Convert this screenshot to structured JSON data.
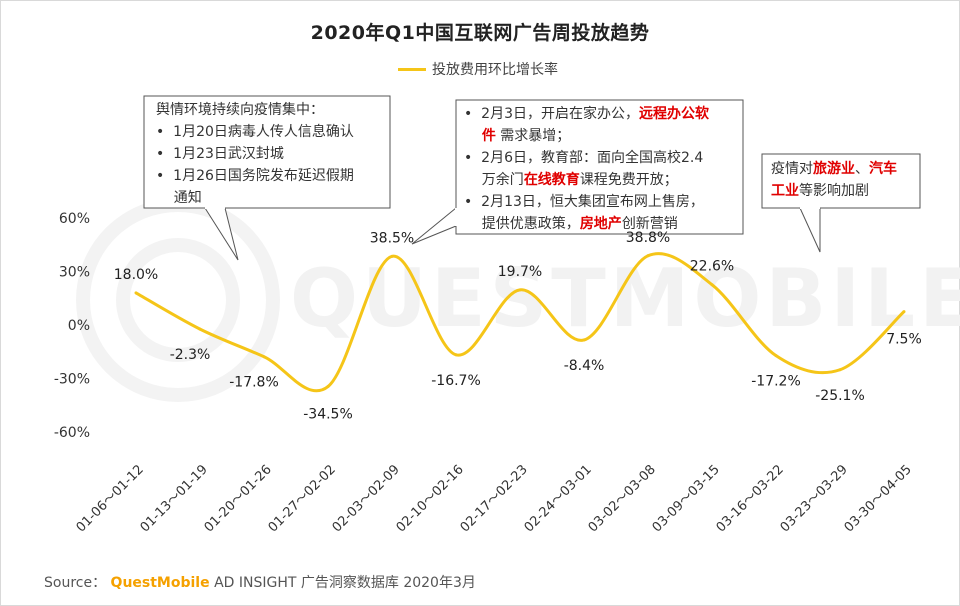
{
  "title": "2020年Q1中国互联网广告周投放趋势",
  "source": {
    "prefix": "Source：",
    "brand": "QuestMobile",
    "suffix": "AD INSIGHT 广告洞察数据库 2020年3月"
  },
  "watermark": "QUESTMOBILE",
  "colors": {
    "line": "#f5c518",
    "highlight": "#e00000",
    "brand": "#f5a100"
  },
  "chart_data": {
    "type": "line",
    "categories": [
      "01-06～01-12",
      "01-13～01-19",
      "01-20～01-26",
      "01-27～02-02",
      "02-03～02-09",
      "02-10～02-16",
      "02-17～02-23",
      "02-24～03-01",
      "03-02～03-08",
      "03-09～03-15",
      "03-16～03-22",
      "03-23～03-29",
      "03-30～04-05"
    ],
    "series": [
      {
        "name": "投放费用环比增长率",
        "values": [
          18.0,
          -2.3,
          -17.8,
          -34.5,
          38.5,
          -16.7,
          19.7,
          -8.4,
          38.8,
          22.6,
          -17.2,
          -25.1,
          7.5
        ],
        "labels": [
          "18.0%",
          "-2.3%",
          "-17.8%",
          "-34.5%",
          "38.5%",
          "-16.7%",
          "19.7%",
          "-8.4%",
          "38.8%",
          "22.6%",
          "-17.2%",
          "-25.1%",
          "7.5%"
        ]
      }
    ],
    "yticks": [
      60,
      30,
      0,
      -30,
      -60
    ],
    "ytick_labels": [
      "60%",
      "30%",
      "0%",
      "-30%",
      "-60%"
    ],
    "ylim": [
      -60,
      60
    ],
    "grid": false,
    "legend_position": "top-center"
  },
  "annotations": [
    {
      "lines": [
        [
          {
            "t": "舆情环境持续向疫情集中："
          }
        ],
        [
          {
            "t": "•  1月20日病毒人传人信息确认"
          }
        ],
        [
          {
            "t": "•  1月23日武汉封城"
          }
        ],
        [
          {
            "t": "•  1月26日国务院发布延迟假期"
          }
        ],
        [
          {
            "t": "    通知"
          }
        ]
      ]
    },
    {
      "lines": [
        [
          {
            "t": "•  2月3日，开启在家办公，"
          },
          {
            "t": "远程办公软",
            "hl": true
          }
        ],
        [
          {
            "t": "    "
          },
          {
            "t": "件",
            "hl": true
          },
          {
            "t": " 需求暴增；"
          }
        ],
        [
          {
            "t": "•  2月6日，教育部：面向全国高校2.4"
          }
        ],
        [
          {
            "t": "    万余门"
          },
          {
            "t": "在线教育",
            "hl": true
          },
          {
            "t": "课程免费开放；"
          }
        ],
        [
          {
            "t": "•  2月13日，恒大集团宣布网上售房，"
          }
        ],
        [
          {
            "t": "    提供优惠政策，"
          },
          {
            "t": "房地产",
            "hl": true
          },
          {
            "t": "创新营销"
          }
        ]
      ]
    },
    {
      "lines": [
        [
          {
            "t": "疫情对"
          },
          {
            "t": "旅游业",
            "hl": true
          },
          {
            "t": "、"
          },
          {
            "t": "汽车",
            "hl": true
          }
        ],
        [
          {
            "t": "工业",
            "hl": true
          },
          {
            "t": "等影响加剧"
          }
        ]
      ]
    }
  ]
}
